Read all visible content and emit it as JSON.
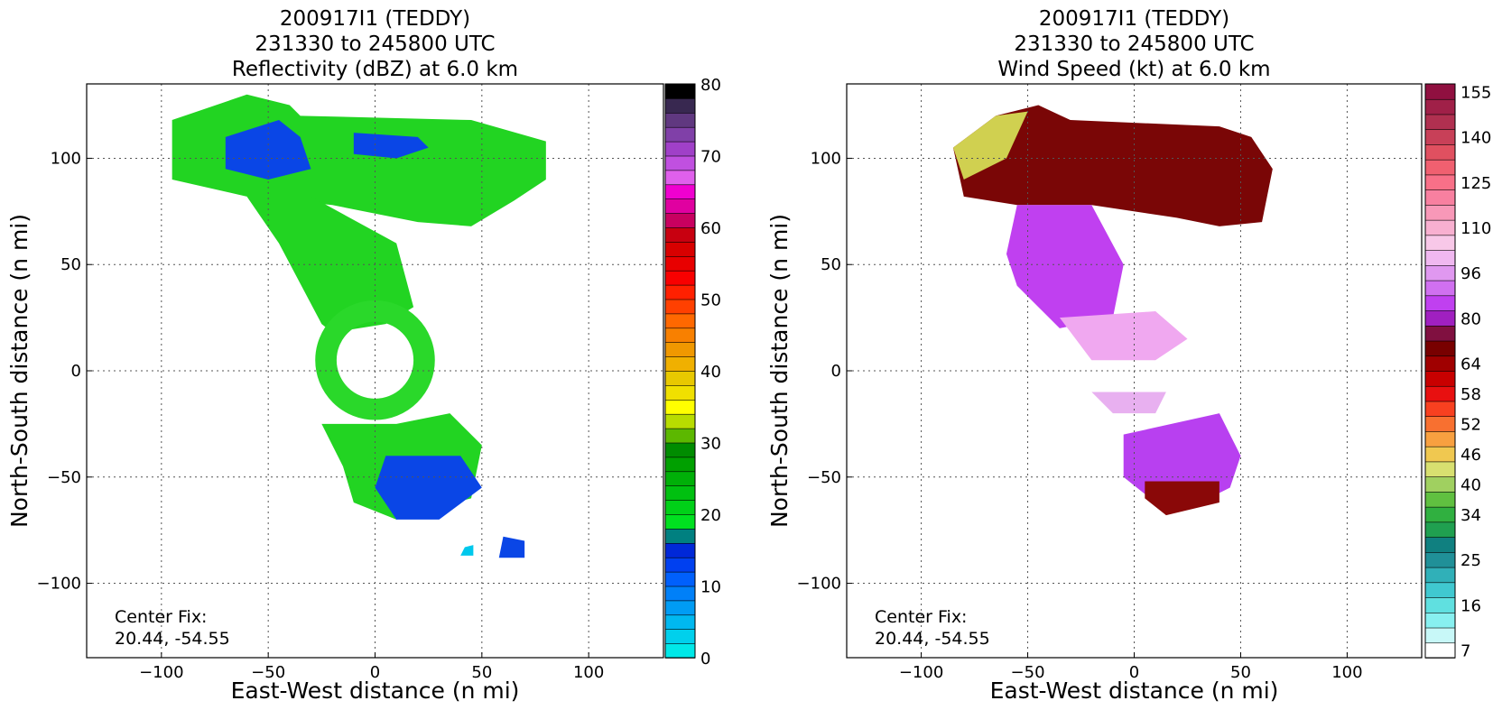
{
  "chart_data": [
    {
      "type": "heatmap",
      "title": [
        "200917I1 (TEDDY)",
        "231330 to 245800 UTC",
        "Reflectivity (dBZ) at 6.0 km"
      ],
      "xlabel": "East-West distance (n mi)",
      "ylabel": "North-South distance (n mi)",
      "xlim": [
        -135,
        135
      ],
      "ylim": [
        -135,
        135
      ],
      "xticks": [
        -100,
        -50,
        0,
        50,
        100
      ],
      "yticks": [
        -100,
        -50,
        0,
        50,
        100
      ],
      "xtick_labels": [
        "−100",
        "−50",
        "0",
        "50",
        "100"
      ],
      "ytick_labels": [
        "−100",
        "−50",
        "0",
        "50",
        "100"
      ],
      "grid": true,
      "annotation": [
        "Center Fix:",
        "20.44, -54.55"
      ],
      "colorbar": {
        "min": 0,
        "max": 80,
        "tick_values": [
          0,
          10,
          20,
          30,
          40,
          50,
          60,
          70,
          80
        ],
        "tick_labels": [
          "0",
          "10",
          "20",
          "30",
          "40",
          "50",
          "60",
          "70",
          "80"
        ],
        "colors": [
          "#00e8e8",
          "#00d0ec",
          "#00b8f0",
          "#009cf4",
          "#0080f8",
          "#0060fc",
          "#0040f0",
          "#0028d8",
          "#008080",
          "#00e020",
          "#00d018",
          "#00c010",
          "#00b008",
          "#00a000",
          "#008c00",
          "#5cb800",
          "#b8dc00",
          "#ffff00",
          "#f0e000",
          "#e8c800",
          "#f0b000",
          "#f09800",
          "#f88000",
          "#ff6800",
          "#ff4000",
          "#ff2000",
          "#f80000",
          "#e80000",
          "#d80000",
          "#c80010",
          "#c80060",
          "#e000a0",
          "#f000d0",
          "#e060ec",
          "#c050e0",
          "#a040c8",
          "#8040a8",
          "#603880",
          "#382850",
          "#000000"
        ]
      },
      "field": {
        "description": "reflectivity swath",
        "regions": [
          {
            "id": "band-north",
            "color": "#1ed21e"
          },
          {
            "id": "band-arm",
            "color": "#1ed21e"
          },
          {
            "id": "eyewall-ring",
            "color": "#2ad82a"
          },
          {
            "id": "south-block",
            "color": "#1ed21e"
          },
          {
            "id": "blue-core",
            "color": "#0a46e6"
          },
          {
            "id": "isolated-echo",
            "color": "#0a46e6"
          }
        ]
      }
    },
    {
      "type": "heatmap",
      "title": [
        "200917I1 (TEDDY)",
        "231330 to 245800 UTC",
        "Wind Speed (kt) at 6.0 km"
      ],
      "xlabel": "East-West distance (n mi)",
      "ylabel": "North-South distance (n mi)",
      "xlim": [
        -135,
        135
      ],
      "ylim": [
        -135,
        135
      ],
      "xticks": [
        -100,
        -50,
        0,
        50,
        100
      ],
      "yticks": [
        -100,
        -50,
        0,
        50,
        100
      ],
      "xtick_labels": [
        "−100",
        "−50",
        "0",
        "50",
        "100"
      ],
      "ytick_labels": [
        "−100",
        "−50",
        "0",
        "50",
        "100"
      ],
      "grid": true,
      "annotation": [
        "Center Fix:",
        "20.44, -54.55"
      ],
      "colorbar": {
        "tick_labels": [
          "7",
          "16",
          "25",
          "34",
          "40",
          "46",
          "52",
          "58",
          "64",
          "80",
          "96",
          "110",
          "125",
          "140",
          "155"
        ],
        "tick_bin_index": [
          0,
          3,
          6,
          9,
          11,
          13,
          15,
          17,
          19,
          22,
          25,
          28,
          31,
          34,
          37
        ],
        "colors": [
          "#ffffff",
          "#c8f8f8",
          "#88f0f0",
          "#60e0e0",
          "#40c8d0",
          "#30b0b8",
          "#209098",
          "#108080",
          "#20a050",
          "#30b040",
          "#60c040",
          "#a0d060",
          "#d8e070",
          "#f0c850",
          "#f8a040",
          "#f87030",
          "#f84020",
          "#e81010",
          "#c80000",
          "#a00000",
          "#780000",
          "#801040",
          "#a020c0",
          "#c040f0",
          "#d070f0",
          "#e098f0",
          "#f0b8f0",
          "#f8c8e8",
          "#f8b0d0",
          "#f898b8",
          "#f880a0",
          "#f87088",
          "#f06070",
          "#e05060",
          "#c84058",
          "#b03050",
          "#a02048",
          "#901040"
        ]
      },
      "field": {
        "description": "wind speed swath",
        "regions": [
          {
            "id": "band-north",
            "color": "#8a0808"
          },
          {
            "id": "arm",
            "color": "#c040f0"
          },
          {
            "id": "eyewall-arc",
            "color": "#f0a8f0"
          },
          {
            "id": "south-block",
            "color": "#b840f0"
          }
        ]
      }
    }
  ]
}
